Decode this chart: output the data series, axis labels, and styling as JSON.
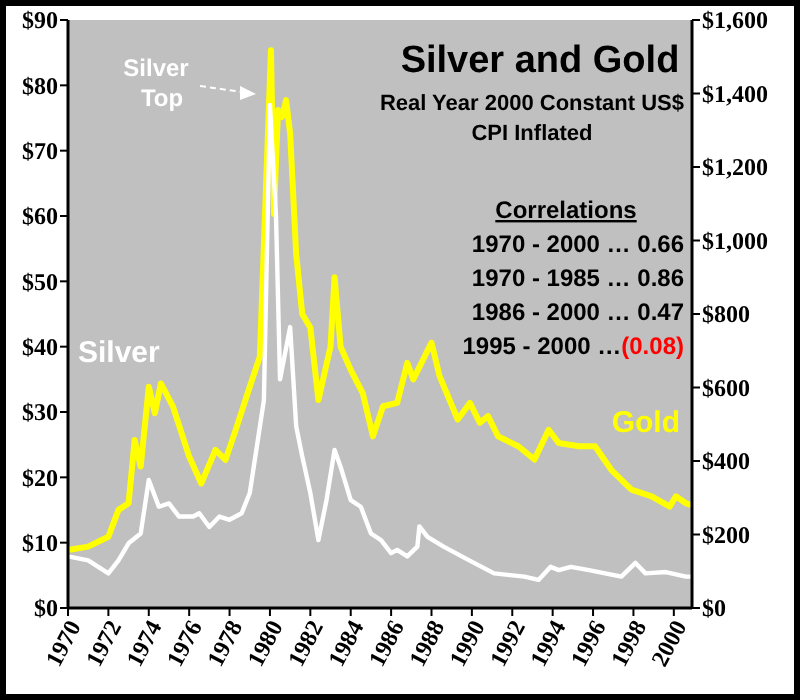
{
  "chart_data": {
    "type": "line",
    "title": "Silver and Gold",
    "subtitle": "Real Year 2000 Constant US$\nCPI Inflated",
    "x": [
      1970,
      1971,
      1972,
      1972.5,
      1973,
      1973.6,
      1974,
      1974.5,
      1975,
      1975.5,
      1976.2,
      1976.5,
      1977,
      1977.5,
      1978,
      1978.6,
      1979,
      1979.4,
      1979.7,
      1980,
      1980.3,
      1980.5,
      1981,
      1981.3,
      1981.6,
      1982,
      1982.4,
      1982.8,
      1983.2,
      1983.5,
      1984,
      1984.5,
      1985,
      1985.5,
      1986,
      1986.3,
      1986.8,
      1987.3,
      1987.4,
      1987.8,
      1988.6,
      1989.8,
      1991.1,
      1992.6,
      1993.3,
      1993.9,
      1994.3,
      1994.9,
      1995.8,
      1996.6,
      1997.4,
      1998.1,
      1998.6,
      1999.6,
      2000.6,
      2000.9
    ],
    "series": [
      {
        "name": "Silver",
        "color": "#ffffff",
        "values": [
          7.9,
          7.3,
          5.3,
          7.3,
          9.9,
          11.4,
          19.6,
          15.5,
          16,
          14,
          14,
          14.5,
          12.4,
          14,
          13.5,
          14.5,
          17.6,
          25.7,
          31.8,
          77,
          60,
          35,
          43,
          27.8,
          23.2,
          17.6,
          10.4,
          16.5,
          24.2,
          21.6,
          16.5,
          15.5,
          11.4,
          10.4,
          8.4,
          8.9,
          7.9,
          9.4,
          12.5,
          10.9,
          9.4,
          7.4,
          5.3,
          4.8,
          4.3,
          6.3,
          5.8,
          6.3,
          5.8,
          5.3,
          4.8,
          6.9,
          5.3,
          5.5,
          4.8,
          4.8
        ]
      },
      {
        "name": "Gold",
        "color": "#ffff00",
        "axis": "y2",
        "x": [
          1970,
          1971,
          1972,
          1972.5,
          1973,
          1973.3,
          1973.6,
          1974,
          1974.3,
          1974.6,
          1975.2,
          1976,
          1976.6,
          1977.3,
          1977.8,
          1978.3,
          1979,
          1979.5,
          1980.05,
          1980.2,
          1980.4,
          1980.6,
          1980.8,
          1981,
          1981.3,
          1981.6,
          1982,
          1982.4,
          1983,
          1983.2,
          1983.5,
          1984,
          1984.6,
          1985.1,
          1985.6,
          1986.3,
          1986.8,
          1987.1,
          1988,
          1988.4,
          1989.3,
          1989.9,
          1990.4,
          1990.8,
          1991.3,
          1992.3,
          1993.1,
          1993.8,
          1994.3,
          1995.3,
          1996.1,
          1996.9,
          1997.9,
          1998.9,
          1999.8,
          2000.1,
          2000.6,
          2000.9
        ],
        "values": [
          158,
          167,
          194,
          267,
          285,
          457,
          385,
          602,
          530,
          611,
          548,
          412,
          339,
          430,
          403,
          484,
          602,
          684,
          1518,
          1072,
          1355,
          1336,
          1382,
          1291,
          963,
          800,
          763,
          566,
          711,
          900,
          711,
          648,
          584,
          467,
          549,
          558,
          667,
          622,
          722,
          631,
          513,
          558,
          504,
          522,
          467,
          440,
          404,
          485,
          449,
          440,
          440,
          376,
          322,
          304,
          276,
          304,
          285,
          280
        ]
      }
    ],
    "xlim": [
      1970,
      2000.9
    ],
    "xticks": [
      1970,
      1972,
      1974,
      1976,
      1978,
      1980,
      1982,
      1984,
      1986,
      1988,
      1990,
      1992,
      1994,
      1996,
      1998,
      2000
    ],
    "ylim": [
      0,
      90
    ],
    "yticks": [
      {
        "value": 0,
        "label": "$0"
      },
      {
        "value": 10,
        "label": "$10"
      },
      {
        "value": 20,
        "label": "$20"
      },
      {
        "value": 30,
        "label": "$30"
      },
      {
        "value": 40,
        "label": "$40"
      },
      {
        "value": 50,
        "label": "$50"
      },
      {
        "value": 60,
        "label": "$60"
      },
      {
        "value": 70,
        "label": "$70"
      },
      {
        "value": 80,
        "label": "$80"
      },
      {
        "value": 90,
        "label": "$90"
      }
    ],
    "y2lim": [
      0,
      1600
    ],
    "y2ticks": [
      {
        "value": 0,
        "label": "$0"
      },
      {
        "value": 200,
        "label": "$200"
      },
      {
        "value": 400,
        "label": "$400"
      },
      {
        "value": 600,
        "label": "$600"
      },
      {
        "value": 800,
        "label": "$800"
      },
      {
        "value": 1000,
        "label": "$1,000"
      },
      {
        "value": 1200,
        "label": "$1,200"
      },
      {
        "value": 1400,
        "label": "$1,400"
      },
      {
        "value": 1600,
        "label": "$1,600"
      }
    ],
    "annotations": [
      "Silver Top",
      "Correlations",
      "1970 - 2000 … 0.66",
      "1970 - 1985 … 0.86",
      "1986 - 2000 … 0.47",
      "1995 - 2000 …(0.08)"
    ],
    "grid": false
  }
}
